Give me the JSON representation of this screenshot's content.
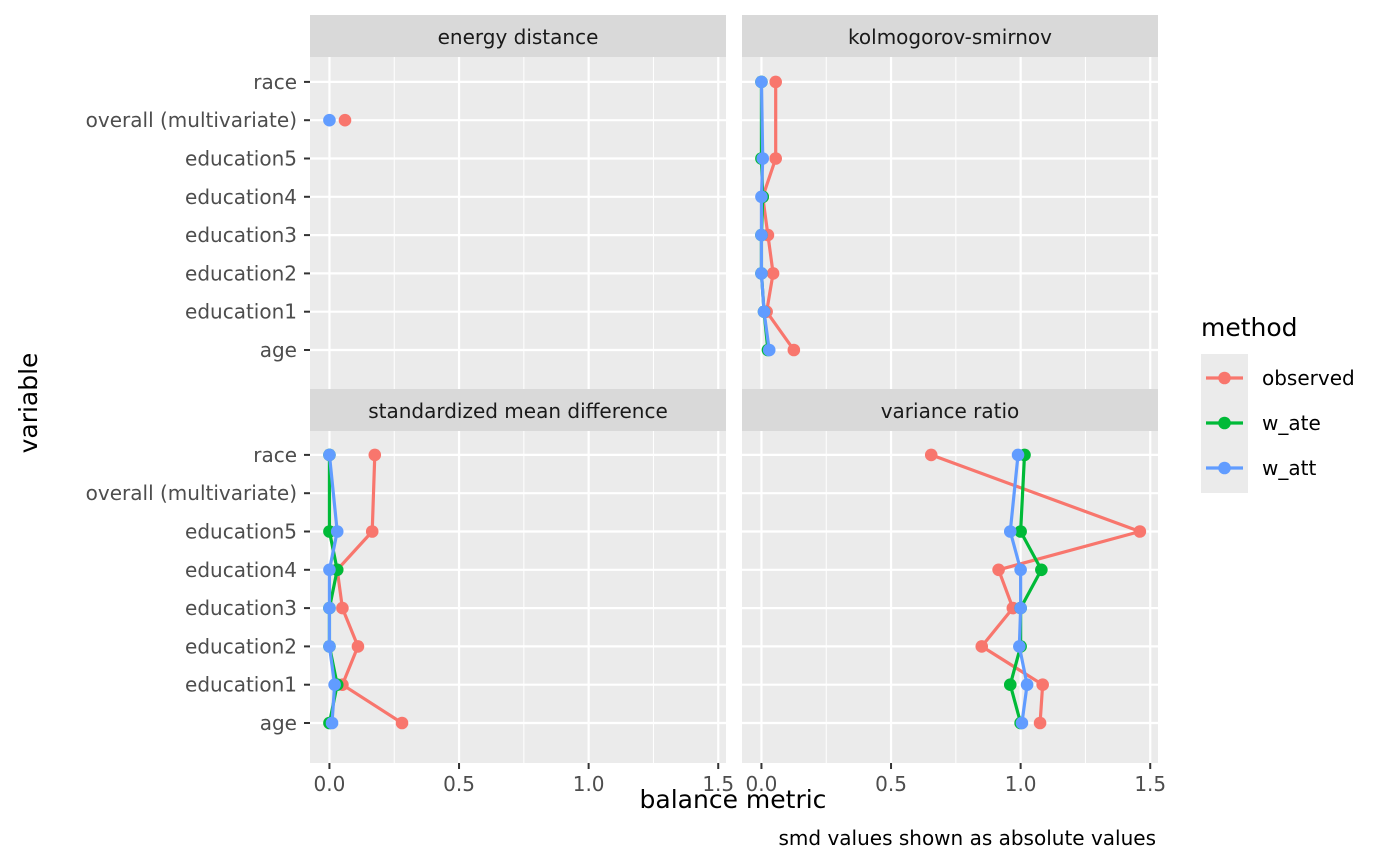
{
  "chart_data": {
    "type": "line",
    "facets": [
      "energy distance",
      "kolmogorov-smirnov",
      "standardized mean difference",
      "variance ratio"
    ],
    "variables": [
      "age",
      "education1",
      "education2",
      "education3",
      "education4",
      "education5",
      "overall (multivariate)",
      "race"
    ],
    "x_ticks": [
      "0.0",
      "0.5",
      "1.0",
      "1.5"
    ],
    "x_tick_values": [
      0.0,
      0.5,
      1.0,
      1.5
    ],
    "xlim": [
      -0.075,
      1.53
    ],
    "xlabel": "balance metric",
    "ylabel": "variable",
    "caption": "smd values shown as absolute values",
    "legend": {
      "title": "method",
      "position": "right",
      "entries": [
        {
          "name": "observed",
          "color": "#F8766D"
        },
        {
          "name": "w_ate",
          "color": "#00BA38"
        },
        {
          "name": "w_att",
          "color": "#619CFF"
        }
      ]
    },
    "grid": true,
    "panels": [
      {
        "facet": "energy distance",
        "series": [
          {
            "name": "observed",
            "color": "#F8766D",
            "points": [
              {
                "variable": "overall (multivariate)",
                "x": 0.06
              }
            ]
          },
          {
            "name": "w_att",
            "color": "#619CFF",
            "points": [
              {
                "variable": "overall (multivariate)",
                "x": 0.0
              }
            ]
          }
        ]
      },
      {
        "facet": "kolmogorov-smirnov",
        "series": [
          {
            "name": "observed",
            "color": "#F8766D",
            "points": [
              {
                "variable": "age",
                "x": 0.125
              },
              {
                "variable": "education1",
                "x": 0.02
              },
              {
                "variable": "education2",
                "x": 0.045
              },
              {
                "variable": "education3",
                "x": 0.025
              },
              {
                "variable": "education4",
                "x": 0.005
              },
              {
                "variable": "education5",
                "x": 0.055
              },
              {
                "variable": "race",
                "x": 0.055
              }
            ]
          },
          {
            "name": "w_ate",
            "color": "#00BA38",
            "points": [
              {
                "variable": "age",
                "x": 0.025
              },
              {
                "variable": "education1",
                "x": 0.01
              },
              {
                "variable": "education2",
                "x": 0.0
              },
              {
                "variable": "education3",
                "x": 0.0
              },
              {
                "variable": "education4",
                "x": 0.005
              },
              {
                "variable": "education5",
                "x": 0.0
              },
              {
                "variable": "race",
                "x": 0.0
              }
            ]
          },
          {
            "name": "w_att",
            "color": "#619CFF",
            "points": [
              {
                "variable": "age",
                "x": 0.03
              },
              {
                "variable": "education1",
                "x": 0.01
              },
              {
                "variable": "education2",
                "x": 0.0
              },
              {
                "variable": "education3",
                "x": 0.0
              },
              {
                "variable": "education4",
                "x": 0.0
              },
              {
                "variable": "education5",
                "x": 0.005
              },
              {
                "variable": "race",
                "x": 0.0
              }
            ]
          }
        ]
      },
      {
        "facet": "standardized mean difference",
        "series": [
          {
            "name": "observed",
            "color": "#F8766D",
            "points": [
              {
                "variable": "age",
                "x": 0.28
              },
              {
                "variable": "education1",
                "x": 0.05
              },
              {
                "variable": "education2",
                "x": 0.11
              },
              {
                "variable": "education3",
                "x": 0.05
              },
              {
                "variable": "education4",
                "x": 0.03
              },
              {
                "variable": "education5",
                "x": 0.165
              },
              {
                "variable": "race",
                "x": 0.175
              }
            ]
          },
          {
            "name": "w_ate",
            "color": "#00BA38",
            "points": [
              {
                "variable": "age",
                "x": 0.0
              },
              {
                "variable": "education1",
                "x": 0.03
              },
              {
                "variable": "education2",
                "x": 0.0
              },
              {
                "variable": "education3",
                "x": 0.0
              },
              {
                "variable": "education4",
                "x": 0.03
              },
              {
                "variable": "education5",
                "x": 0.0
              },
              {
                "variable": "race",
                "x": 0.0
              }
            ]
          },
          {
            "name": "w_att",
            "color": "#619CFF",
            "points": [
              {
                "variable": "age",
                "x": 0.01
              },
              {
                "variable": "education1",
                "x": 0.02
              },
              {
                "variable": "education2",
                "x": 0.0
              },
              {
                "variable": "education3",
                "x": 0.0
              },
              {
                "variable": "education4",
                "x": 0.0
              },
              {
                "variable": "education5",
                "x": 0.03
              },
              {
                "variable": "race",
                "x": 0.0
              }
            ]
          }
        ]
      },
      {
        "facet": "variance ratio",
        "series": [
          {
            "name": "observed",
            "color": "#F8766D",
            "points": [
              {
                "variable": "age",
                "x": 1.075
              },
              {
                "variable": "education1",
                "x": 1.085
              },
              {
                "variable": "education2",
                "x": 0.85
              },
              {
                "variable": "education3",
                "x": 0.97
              },
              {
                "variable": "education4",
                "x": 0.915
              },
              {
                "variable": "education5",
                "x": 1.46
              },
              {
                "variable": "race",
                "x": 0.655
              }
            ]
          },
          {
            "name": "w_ate",
            "color": "#00BA38",
            "points": [
              {
                "variable": "age",
                "x": 1.0
              },
              {
                "variable": "education1",
                "x": 0.96
              },
              {
                "variable": "education2",
                "x": 1.0
              },
              {
                "variable": "education3",
                "x": 1.0
              },
              {
                "variable": "education4",
                "x": 1.08
              },
              {
                "variable": "education5",
                "x": 1.0
              },
              {
                "variable": "race",
                "x": 1.015
              }
            ]
          },
          {
            "name": "w_att",
            "color": "#619CFF",
            "points": [
              {
                "variable": "age",
                "x": 1.005
              },
              {
                "variable": "education1",
                "x": 1.025
              },
              {
                "variable": "education2",
                "x": 0.995
              },
              {
                "variable": "education3",
                "x": 1.0
              },
              {
                "variable": "education4",
                "x": 1.0
              },
              {
                "variable": "education5",
                "x": 0.96
              },
              {
                "variable": "race",
                "x": 0.99
              }
            ]
          }
        ]
      }
    ]
  }
}
